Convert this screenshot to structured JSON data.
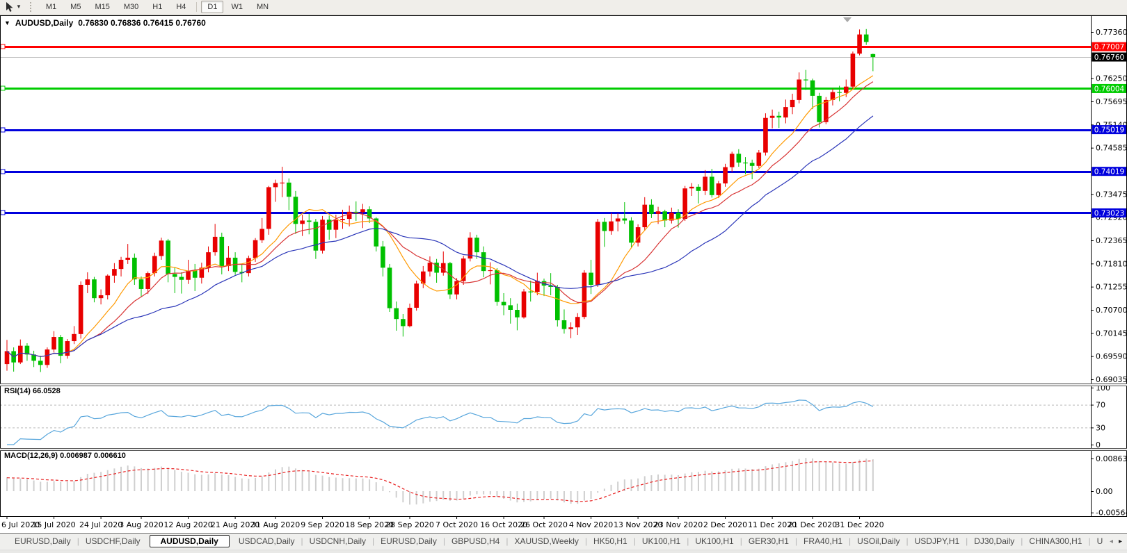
{
  "toolbar": {
    "timeframes": [
      {
        "label": "M1"
      },
      {
        "label": "M5"
      },
      {
        "label": "M15"
      },
      {
        "label": "M30"
      },
      {
        "label": "H1"
      },
      {
        "label": "H4"
      },
      {
        "label": "D1",
        "active": true,
        "sep_before": true
      },
      {
        "label": "W1"
      },
      {
        "label": "MN"
      }
    ]
  },
  "chart": {
    "title_symbol": "AUDUSD,Daily",
    "title_ohlc": "0.76830 0.76836 0.76415 0.76760"
  },
  "chart_data": {
    "type": "candlestick",
    "symbol": "AUDUSD",
    "timeframe": "Daily",
    "ohlc_display": {
      "open": "0.76830",
      "high": "0.76836",
      "low": "0.76415",
      "close": "0.76760"
    },
    "price_axis_ticks": [
      "0.77360",
      "0.76250",
      "0.75695",
      "0.75140",
      "0.74585",
      "0.73475",
      "0.72920",
      "0.72365",
      "0.71810",
      "0.71255",
      "0.70700",
      "0.70145",
      "0.69590",
      "0.69035"
    ],
    "price_badges": [
      {
        "label": "0.77007",
        "price": 0.77007,
        "bg": "#ff0000",
        "fg": "#ffffff"
      },
      {
        "label": "0.76760",
        "price": 0.7676,
        "bg": "#000000",
        "fg": "#ffffff"
      },
      {
        "label": "0.76004",
        "price": 0.76004,
        "bg": "#00cc00",
        "fg": "#ffffff"
      },
      {
        "label": "0.75019",
        "price": 0.75019,
        "bg": "#0000dd",
        "fg": "#ffffff"
      },
      {
        "label": "0.74019",
        "price": 0.74019,
        "bg": "#0000dd",
        "fg": "#ffffff"
      },
      {
        "label": "0.73023",
        "price": 0.73023,
        "bg": "#0000dd",
        "fg": "#ffffff"
      }
    ],
    "horizontal_lines": [
      {
        "price": 0.77007,
        "color": "#ff0000",
        "width": 3,
        "anchor": true
      },
      {
        "price": 0.7676,
        "color": "#b8b8b8",
        "width": 1,
        "anchor": false
      },
      {
        "price": 0.76004,
        "color": "#00cc00",
        "width": 3,
        "anchor": true
      },
      {
        "price": 0.75019,
        "color": "#0000dd",
        "width": 3,
        "anchor": true
      },
      {
        "price": 0.74019,
        "color": "#0000dd",
        "width": 3,
        "anchor": true
      },
      {
        "price": 0.73023,
        "color": "#0000dd",
        "width": 3,
        "anchor": true
      }
    ],
    "colors": {
      "up": "#e80000",
      "down": "#00c000"
    },
    "moving_averages": [
      {
        "period": 9,
        "color": "#ff9900"
      },
      {
        "period": 14,
        "color": "#d83434"
      },
      {
        "period": 26,
        "color": "#2a35b8"
      }
    ],
    "x_labels": [
      "6 Jul 2020",
      "15 Jul 2020",
      "24 Jul 2020",
      "3 Aug 2020",
      "12 Aug 2020",
      "21 Aug 2020",
      "31 Aug 2020",
      "9 Sep 2020",
      "18 Sep 2020",
      "28 Sep 2020",
      "7 Oct 2020",
      "16 Oct 2020",
      "26 Oct 2020",
      "4 Nov 2020",
      "13 Nov 2020",
      "23 Nov 2020",
      "2 Dec 2020",
      "11 Dec 2020",
      "21 Dec 2020",
      "31 Dec 2020"
    ],
    "x_label_indices": [
      0,
      7,
      14,
      20,
      27,
      34,
      40,
      47,
      54,
      60,
      67,
      74,
      80,
      87,
      94,
      100,
      107,
      114,
      120,
      127
    ],
    "candles_ohlc": [
      [
        0.694,
        0.6998,
        0.6924,
        0.6971
      ],
      [
        0.6971,
        0.698,
        0.6922,
        0.6944
      ],
      [
        0.6944,
        0.6999,
        0.694,
        0.6984
      ],
      [
        0.6984,
        0.699,
        0.6948,
        0.6963
      ],
      [
        0.6963,
        0.6972,
        0.6933,
        0.6948
      ],
      [
        0.6948,
        0.696,
        0.6921,
        0.6938
      ],
      [
        0.6938,
        0.698,
        0.6931,
        0.6975
      ],
      [
        0.6975,
        0.7019,
        0.6968,
        0.7005
      ],
      [
        0.7005,
        0.701,
        0.6942,
        0.696
      ],
      [
        0.696,
        0.7,
        0.6953,
        0.6995
      ],
      [
        0.6995,
        0.7031,
        0.6988,
        0.7012
      ],
      [
        0.7012,
        0.7138,
        0.7001,
        0.713
      ],
      [
        0.713,
        0.716,
        0.711,
        0.7143
      ],
      [
        0.7143,
        0.7149,
        0.7088,
        0.7098
      ],
      [
        0.7098,
        0.7119,
        0.7083,
        0.7105
      ],
      [
        0.7105,
        0.7155,
        0.7095,
        0.7152
      ],
      [
        0.7152,
        0.7182,
        0.7135,
        0.7168
      ],
      [
        0.7168,
        0.7197,
        0.715,
        0.719
      ],
      [
        0.719,
        0.7228,
        0.718,
        0.7195
      ],
      [
        0.7195,
        0.7205,
        0.713,
        0.7143
      ],
      [
        0.7143,
        0.715,
        0.7102,
        0.712
      ],
      [
        0.712,
        0.7162,
        0.7108,
        0.7158
      ],
      [
        0.7158,
        0.7207,
        0.715,
        0.7199
      ],
      [
        0.7199,
        0.7243,
        0.719,
        0.7236
      ],
      [
        0.7236,
        0.724,
        0.7136,
        0.7156
      ],
      [
        0.7156,
        0.7171,
        0.711,
        0.7149
      ],
      [
        0.7149,
        0.716,
        0.7109,
        0.7142
      ],
      [
        0.7142,
        0.719,
        0.7132,
        0.7164
      ],
      [
        0.7164,
        0.718,
        0.7115,
        0.7147
      ],
      [
        0.7147,
        0.7183,
        0.7133,
        0.7171
      ],
      [
        0.7171,
        0.7222,
        0.716,
        0.7208
      ],
      [
        0.7208,
        0.7276,
        0.72,
        0.7245
      ],
      [
        0.7245,
        0.7255,
        0.7155,
        0.7175
      ],
      [
        0.7175,
        0.7223,
        0.7163,
        0.7195
      ],
      [
        0.7195,
        0.7208,
        0.7154,
        0.7161
      ],
      [
        0.7161,
        0.718,
        0.7136,
        0.7158
      ],
      [
        0.7158,
        0.72,
        0.715,
        0.7194
      ],
      [
        0.7194,
        0.7242,
        0.7185,
        0.7237
      ],
      [
        0.7237,
        0.729,
        0.723,
        0.7264
      ],
      [
        0.7264,
        0.7367,
        0.725,
        0.7364
      ],
      [
        0.7364,
        0.7382,
        0.7329,
        0.7374
      ],
      [
        0.7374,
        0.7413,
        0.734,
        0.7375
      ],
      [
        0.7375,
        0.7385,
        0.7309,
        0.7341
      ],
      [
        0.7341,
        0.7355,
        0.7252,
        0.7276
      ],
      [
        0.7276,
        0.7298,
        0.7247,
        0.7284
      ],
      [
        0.7284,
        0.73,
        0.7251,
        0.7281
      ],
      [
        0.7281,
        0.7288,
        0.7192,
        0.7212
      ],
      [
        0.7212,
        0.7295,
        0.7205,
        0.7286
      ],
      [
        0.7286,
        0.7296,
        0.7238,
        0.7262
      ],
      [
        0.7262,
        0.7298,
        0.7242,
        0.7285
      ],
      [
        0.7285,
        0.731,
        0.7264,
        0.7288
      ],
      [
        0.7288,
        0.732,
        0.727,
        0.7305
      ],
      [
        0.7305,
        0.733,
        0.7283,
        0.7304
      ],
      [
        0.7304,
        0.7324,
        0.7266,
        0.7311
      ],
      [
        0.7311,
        0.7318,
        0.7278,
        0.7289
      ],
      [
        0.7289,
        0.7292,
        0.721,
        0.7222
      ],
      [
        0.7222,
        0.7235,
        0.715,
        0.7171
      ],
      [
        0.7171,
        0.718,
        0.7065,
        0.7074
      ],
      [
        0.7074,
        0.709,
        0.702,
        0.7048
      ],
      [
        0.7048,
        0.706,
        0.7006,
        0.7031
      ],
      [
        0.7031,
        0.7085,
        0.7028,
        0.7075
      ],
      [
        0.7075,
        0.714,
        0.7068,
        0.7133
      ],
      [
        0.7133,
        0.7175,
        0.7122,
        0.7162
      ],
      [
        0.7162,
        0.7198,
        0.715,
        0.7183
      ],
      [
        0.7183,
        0.7192,
        0.7135,
        0.7159
      ],
      [
        0.7159,
        0.721,
        0.7152,
        0.7182
      ],
      [
        0.7182,
        0.7185,
        0.7096,
        0.7107
      ],
      [
        0.7107,
        0.7146,
        0.7095,
        0.7139
      ],
      [
        0.7139,
        0.7199,
        0.713,
        0.7193
      ],
      [
        0.7193,
        0.7256,
        0.7186,
        0.7243
      ],
      [
        0.7243,
        0.725,
        0.7192,
        0.7208
      ],
      [
        0.7208,
        0.7222,
        0.7148,
        0.7163
      ],
      [
        0.7163,
        0.7184,
        0.7131,
        0.7165
      ],
      [
        0.7165,
        0.717,
        0.708,
        0.7089
      ],
      [
        0.7089,
        0.711,
        0.7057,
        0.7081
      ],
      [
        0.7081,
        0.7098,
        0.7037,
        0.707
      ],
      [
        0.707,
        0.7085,
        0.7021,
        0.7052
      ],
      [
        0.7052,
        0.712,
        0.7049,
        0.7114
      ],
      [
        0.7114,
        0.714,
        0.709,
        0.7113
      ],
      [
        0.7113,
        0.7159,
        0.7105,
        0.7139
      ],
      [
        0.7139,
        0.7145,
        0.7103,
        0.7128
      ],
      [
        0.7128,
        0.7158,
        0.7105,
        0.7125
      ],
      [
        0.7125,
        0.713,
        0.703,
        0.7045
      ],
      [
        0.7045,
        0.7071,
        0.7013,
        0.7024
      ],
      [
        0.7024,
        0.704,
        0.7002,
        0.7028
      ],
      [
        0.7028,
        0.7062,
        0.701,
        0.7053
      ],
      [
        0.7053,
        0.7165,
        0.7048,
        0.7159
      ],
      [
        0.7159,
        0.719,
        0.7108,
        0.713
      ],
      [
        0.713,
        0.7288,
        0.7125,
        0.7281
      ],
      [
        0.7281,
        0.729,
        0.7221,
        0.7259
      ],
      [
        0.7259,
        0.7302,
        0.725,
        0.7282
      ],
      [
        0.7282,
        0.7301,
        0.7258,
        0.7289
      ],
      [
        0.7289,
        0.7328,
        0.7276,
        0.7284
      ],
      [
        0.7284,
        0.7292,
        0.722,
        0.7231
      ],
      [
        0.7231,
        0.7275,
        0.7222,
        0.7268
      ],
      [
        0.7268,
        0.734,
        0.726,
        0.7322
      ],
      [
        0.7322,
        0.7335,
        0.729,
        0.73
      ],
      [
        0.73,
        0.7317,
        0.7276,
        0.7306
      ],
      [
        0.7306,
        0.731,
        0.7268,
        0.7284
      ],
      [
        0.7284,
        0.7315,
        0.7277,
        0.7303
      ],
      [
        0.7303,
        0.7311,
        0.7267,
        0.7288
      ],
      [
        0.7288,
        0.7367,
        0.7283,
        0.7361
      ],
      [
        0.7361,
        0.7374,
        0.7343,
        0.7365
      ],
      [
        0.7365,
        0.7371,
        0.7325,
        0.7355
      ],
      [
        0.7355,
        0.7405,
        0.7345,
        0.7389
      ],
      [
        0.7389,
        0.7408,
        0.7339,
        0.7345
      ],
      [
        0.7345,
        0.7379,
        0.7338,
        0.7373
      ],
      [
        0.7373,
        0.742,
        0.7365,
        0.7412
      ],
      [
        0.7412,
        0.7449,
        0.74,
        0.7444
      ],
      [
        0.7444,
        0.7455,
        0.7413,
        0.7423
      ],
      [
        0.7423,
        0.7436,
        0.7395,
        0.7422
      ],
      [
        0.7422,
        0.743,
        0.7383,
        0.7415
      ],
      [
        0.7415,
        0.7453,
        0.741,
        0.7447
      ],
      [
        0.7447,
        0.7541,
        0.744,
        0.753
      ],
      [
        0.753,
        0.755,
        0.7505,
        0.7535
      ],
      [
        0.7535,
        0.7545,
        0.7506,
        0.7531
      ],
      [
        0.7531,
        0.7574,
        0.7517,
        0.7556
      ],
      [
        0.7556,
        0.7588,
        0.7539,
        0.7573
      ],
      [
        0.7573,
        0.7639,
        0.7565,
        0.7622
      ],
      [
        0.7622,
        0.7645,
        0.7597,
        0.762
      ],
      [
        0.762,
        0.7624,
        0.7551,
        0.7583
      ],
      [
        0.7583,
        0.759,
        0.7507,
        0.752
      ],
      [
        0.752,
        0.758,
        0.7515,
        0.7573
      ],
      [
        0.7573,
        0.76,
        0.756,
        0.7592
      ],
      [
        0.7592,
        0.7607,
        0.757,
        0.759
      ],
      [
        0.759,
        0.7622,
        0.758,
        0.7605
      ],
      [
        0.7605,
        0.7689,
        0.7598,
        0.7684
      ],
      [
        0.7684,
        0.7742,
        0.768,
        0.773
      ],
      [
        0.773,
        0.7743,
        0.7705,
        0.7712
      ],
      [
        0.7683,
        0.7684,
        0.7642,
        0.7676
      ]
    ],
    "indicators": {
      "rsi": {
        "label": "RSI(14) 66.0528",
        "period": 14,
        "value": 66.0528,
        "scale_labels": [
          "100",
          "70",
          "30",
          "0"
        ],
        "scale_values": [
          100,
          70,
          30,
          0
        ],
        "levels": [
          70,
          30
        ],
        "color": "#58a6dc"
      },
      "macd": {
        "label": "MACD(12,26,9) 0.006987 0.006610",
        "fast": 12,
        "slow": 26,
        "signal": 9,
        "value_main": 0.006987,
        "value_signal": 0.00661,
        "scale_labels": [
          "0.008633",
          "0.00",
          "-0.005641"
        ],
        "scale_values": [
          0.008633,
          0,
          -0.005641
        ],
        "histogram_color": "#cfcfcf",
        "signal_color": "#e82020"
      }
    }
  },
  "tabs": [
    {
      "label": "EURUSD,Daily"
    },
    {
      "label": "USDCHF,Daily"
    },
    {
      "label": "AUDUSD,Daily",
      "active": true
    },
    {
      "label": "USDCAD,Daily"
    },
    {
      "label": "USDCNH,Daily"
    },
    {
      "label": "EURUSD,Daily"
    },
    {
      "label": "GBPUSD,H4"
    },
    {
      "label": "XAUUSD,Weekly"
    },
    {
      "label": "HK50,H1"
    },
    {
      "label": "UK100,H1"
    },
    {
      "label": "UK100,H1"
    },
    {
      "label": "GER30,H1"
    },
    {
      "label": "FRA40,H1"
    },
    {
      "label": "USOil,Daily"
    },
    {
      "label": "USDJPY,H1"
    },
    {
      "label": "DJ30,Daily"
    },
    {
      "label": "CHINA300,H1"
    },
    {
      "label": "U"
    }
  ],
  "tab_arrows": {
    "left": "◂",
    "right": "▸"
  }
}
